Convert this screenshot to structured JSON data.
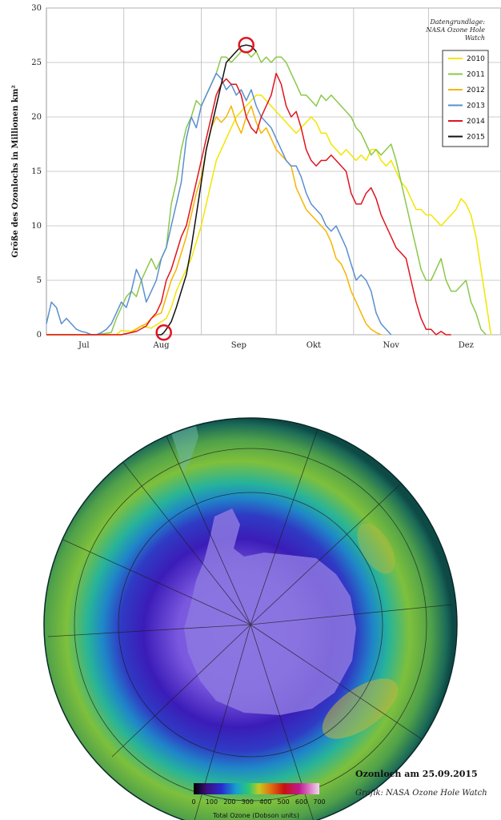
{
  "chart_data": {
    "type": "line",
    "title": "",
    "ylabel": "Größe des Ozonlochs  in Millionen km²",
    "xlabel": "",
    "ylim": [
      0,
      30
    ],
    "yticks": [
      0,
      5,
      10,
      15,
      20,
      25,
      30
    ],
    "xlim": [
      0,
      182
    ],
    "months": [
      {
        "label": "Jul",
        "x": 15
      },
      {
        "label": "Aug",
        "x": 46
      },
      {
        "label": "Sep",
        "x": 77
      },
      {
        "label": "Okt",
        "x": 107
      },
      {
        "label": "Nov",
        "x": 138
      },
      {
        "label": "Dez",
        "x": 168
      }
    ],
    "source_note": [
      "Datengrundlage:",
      "NASA Ozone Hole",
      "Watch"
    ],
    "markers": [
      {
        "x": 47,
        "y": 0.2
      },
      {
        "x": 80,
        "y": 26.6
      }
    ],
    "series": [
      {
        "name": "2010",
        "color": "#f2e600",
        "x": [
          0,
          20,
          28,
          30,
          34,
          38,
          42,
          44,
          46,
          48,
          50,
          52,
          55,
          58,
          62,
          64,
          66,
          68,
          70,
          72,
          74,
          76,
          78,
          80,
          82,
          84,
          86,
          88,
          90,
          92,
          94,
          96,
          98,
          100,
          102,
          104,
          106,
          108,
          110,
          112,
          114,
          116,
          118,
          120,
          122,
          124,
          126,
          128,
          130,
          132,
          134,
          136,
          138,
          140,
          142,
          144,
          146,
          148,
          150,
          152,
          154,
          156,
          158,
          160,
          162,
          164,
          166,
          168,
          170,
          172,
          174,
          176,
          178
        ],
        "y": [
          0,
          0,
          0,
          0.4,
          0.3,
          0.8,
          0.6,
          0.9,
          1.2,
          1.5,
          2.5,
          4,
          5.5,
          7,
          10,
          12,
          14,
          16,
          17,
          18,
          19,
          20,
          20.5,
          21,
          21.5,
          22,
          22,
          21.5,
          21,
          20.5,
          20,
          19.5,
          19,
          18.5,
          19,
          19.5,
          20,
          19.5,
          18.5,
          18.5,
          17.5,
          17,
          16.5,
          17,
          16.5,
          16,
          16.5,
          16,
          17,
          17,
          16,
          15.5,
          16,
          15,
          14,
          13.5,
          12.5,
          11.5,
          11.5,
          11,
          11,
          10.5,
          10,
          10.5,
          11,
          11.5,
          12.5,
          12,
          11,
          9,
          6,
          3,
          0
        ]
      },
      {
        "name": "2011",
        "color": "#8bc84a",
        "x": [
          0,
          20,
          26,
          28,
          30,
          32,
          34,
          36,
          38,
          40,
          42,
          44,
          46,
          48,
          50,
          52,
          54,
          56,
          58,
          60,
          62,
          64,
          66,
          68,
          70,
          72,
          74,
          76,
          78,
          80,
          82,
          84,
          86,
          88,
          90,
          92,
          94,
          96,
          98,
          100,
          102,
          104,
          106,
          108,
          110,
          112,
          114,
          116,
          118,
          120,
          122,
          124,
          126,
          128,
          130,
          132,
          134,
          136,
          138,
          140,
          142,
          144,
          146,
          148,
          150,
          152,
          154,
          156,
          158,
          160,
          162,
          164,
          166,
          168,
          170,
          172,
          174,
          176
        ],
        "y": [
          0,
          0,
          0.2,
          1.5,
          2.5,
          3.5,
          4,
          3.5,
          5,
          6,
          7,
          6,
          7,
          8,
          12,
          14,
          17,
          19,
          20,
          21.5,
          21,
          22,
          23,
          24,
          25.5,
          25.5,
          25,
          25.5,
          26,
          26,
          25.5,
          26,
          25,
          25.5,
          25,
          25.5,
          25.5,
          25,
          24,
          23,
          22,
          22,
          21.5,
          21,
          22,
          21.5,
          22,
          21.5,
          21,
          20.5,
          20,
          19,
          18.5,
          17.5,
          16.5,
          17,
          16.5,
          17,
          17.5,
          16,
          14,
          12,
          10,
          8,
          6,
          5,
          5,
          6,
          7,
          5,
          4,
          4,
          4.5,
          5,
          3,
          2,
          0.5,
          0
        ]
      },
      {
        "name": "2012",
        "color": "#f7b500",
        "x": [
          0,
          30,
          34,
          38,
          40,
          42,
          44,
          46,
          48,
          50,
          52,
          54,
          56,
          58,
          60,
          62,
          64,
          66,
          68,
          70,
          72,
          74,
          76,
          78,
          80,
          82,
          84,
          86,
          88,
          90,
          92,
          94,
          96,
          98,
          100,
          102,
          104,
          106,
          108,
          110,
          112,
          114,
          116,
          118,
          120,
          122,
          124,
          126,
          128,
          130,
          132,
          134
        ],
        "y": [
          0,
          0,
          0.2,
          0.8,
          1,
          1.5,
          1.8,
          2,
          3.5,
          5,
          6,
          7.5,
          9,
          11,
          13,
          14.5,
          17,
          19,
          20,
          19.5,
          20,
          21,
          19.5,
          18.5,
          20,
          21,
          19.5,
          18.5,
          19,
          18,
          17,
          16.5,
          16,
          15.5,
          13.5,
          12.5,
          11.5,
          11,
          10.5,
          10,
          9.5,
          8.5,
          7,
          6.5,
          5.5,
          4,
          3,
          2,
          1,
          0.5,
          0.2,
          0
        ]
      },
      {
        "name": "2013",
        "color": "#5a8fd0",
        "x": [
          0,
          2,
          4,
          6,
          8,
          10,
          12,
          14,
          16,
          18,
          20,
          22,
          24,
          26,
          28,
          30,
          32,
          34,
          36,
          38,
          40,
          42,
          44,
          46,
          48,
          50,
          52,
          54,
          56,
          58,
          60,
          62,
          64,
          66,
          68,
          70,
          72,
          74,
          76,
          78,
          80,
          82,
          84,
          86,
          88,
          90,
          92,
          94,
          96,
          98,
          100,
          102,
          104,
          106,
          108,
          110,
          112,
          114,
          116,
          118,
          120,
          122,
          124,
          126,
          128,
          130,
          132,
          134,
          136,
          138
        ],
        "y": [
          1,
          3,
          2.5,
          1,
          1.5,
          1,
          0.5,
          0.3,
          0.2,
          0,
          0,
          0.2,
          0.5,
          1,
          2,
          3,
          2.5,
          4,
          6,
          5,
          3,
          4,
          5,
          7,
          8,
          10,
          12,
          14,
          18,
          20,
          19,
          21,
          22,
          23,
          24,
          23.5,
          22.5,
          23,
          22,
          22.5,
          21.5,
          22.5,
          21,
          20,
          19.5,
          19,
          18,
          17,
          16,
          15.5,
          15.5,
          14.5,
          13,
          12,
          11.5,
          11,
          10,
          9.5,
          10,
          9,
          8,
          6.5,
          5,
          5.5,
          5,
          4,
          2,
          1,
          0.5,
          0
        ]
      },
      {
        "name": "2014",
        "color": "#e0141e",
        "x": [
          0,
          30,
          36,
          40,
          42,
          44,
          46,
          48,
          50,
          52,
          54,
          56,
          58,
          60,
          62,
          64,
          66,
          68,
          70,
          72,
          74,
          76,
          78,
          80,
          82,
          84,
          86,
          88,
          90,
          92,
          94,
          96,
          98,
          100,
          102,
          104,
          106,
          108,
          110,
          112,
          114,
          116,
          118,
          120,
          122,
          124,
          126,
          128,
          130,
          132,
          134,
          136,
          138,
          140,
          142,
          144,
          146,
          148,
          150,
          152,
          154,
          156,
          158,
          160,
          162
        ],
        "y": [
          0,
          0,
          0.3,
          0.8,
          1.5,
          2,
          3,
          5,
          6,
          7.5,
          9,
          10,
          12,
          14,
          16,
          18,
          20,
          22,
          23,
          23.5,
          23,
          23,
          22,
          20,
          19,
          18.5,
          20,
          21,
          22,
          24,
          23,
          21,
          20,
          20.5,
          19,
          17,
          16,
          15.5,
          16,
          16,
          16.5,
          16,
          15.5,
          15,
          13,
          12,
          12,
          13,
          13.5,
          12.5,
          11,
          10,
          9,
          8,
          7.5,
          7,
          5,
          3,
          1.5,
          0.5,
          0.5,
          0,
          0.3,
          0,
          0
        ]
      },
      {
        "name": "2015",
        "color": "#111111",
        "x": [
          44,
          46,
          47,
          48,
          50,
          52,
          54,
          56,
          58,
          60,
          62,
          64,
          66,
          68,
          70,
          72,
          74,
          76,
          78,
          80,
          82,
          84
        ],
        "y": [
          0,
          0,
          0.2,
          0.5,
          1.2,
          2.5,
          4,
          5.5,
          8,
          11,
          14,
          17,
          19,
          21,
          23,
          25,
          25.5,
          26,
          26.5,
          26.6,
          26.5,
          26
        ]
      }
    ]
  },
  "map": {
    "scale_ticks": [
      "0",
      "100",
      "200",
      "300",
      "400",
      "500",
      "600",
      "700"
    ],
    "scale_label": "Total Ozone (Dobson units)",
    "colors": {
      "hole": "#3a1fb0",
      "core": "#7d5ce0",
      "mid": "#2aa6c6",
      "outer": "#86c63a",
      "rim": "#0d4a46"
    }
  },
  "caption": {
    "title": "Ozonloch am 25.09.2015",
    "credit": "Grafik: NASA Ozone Hole Watch"
  }
}
